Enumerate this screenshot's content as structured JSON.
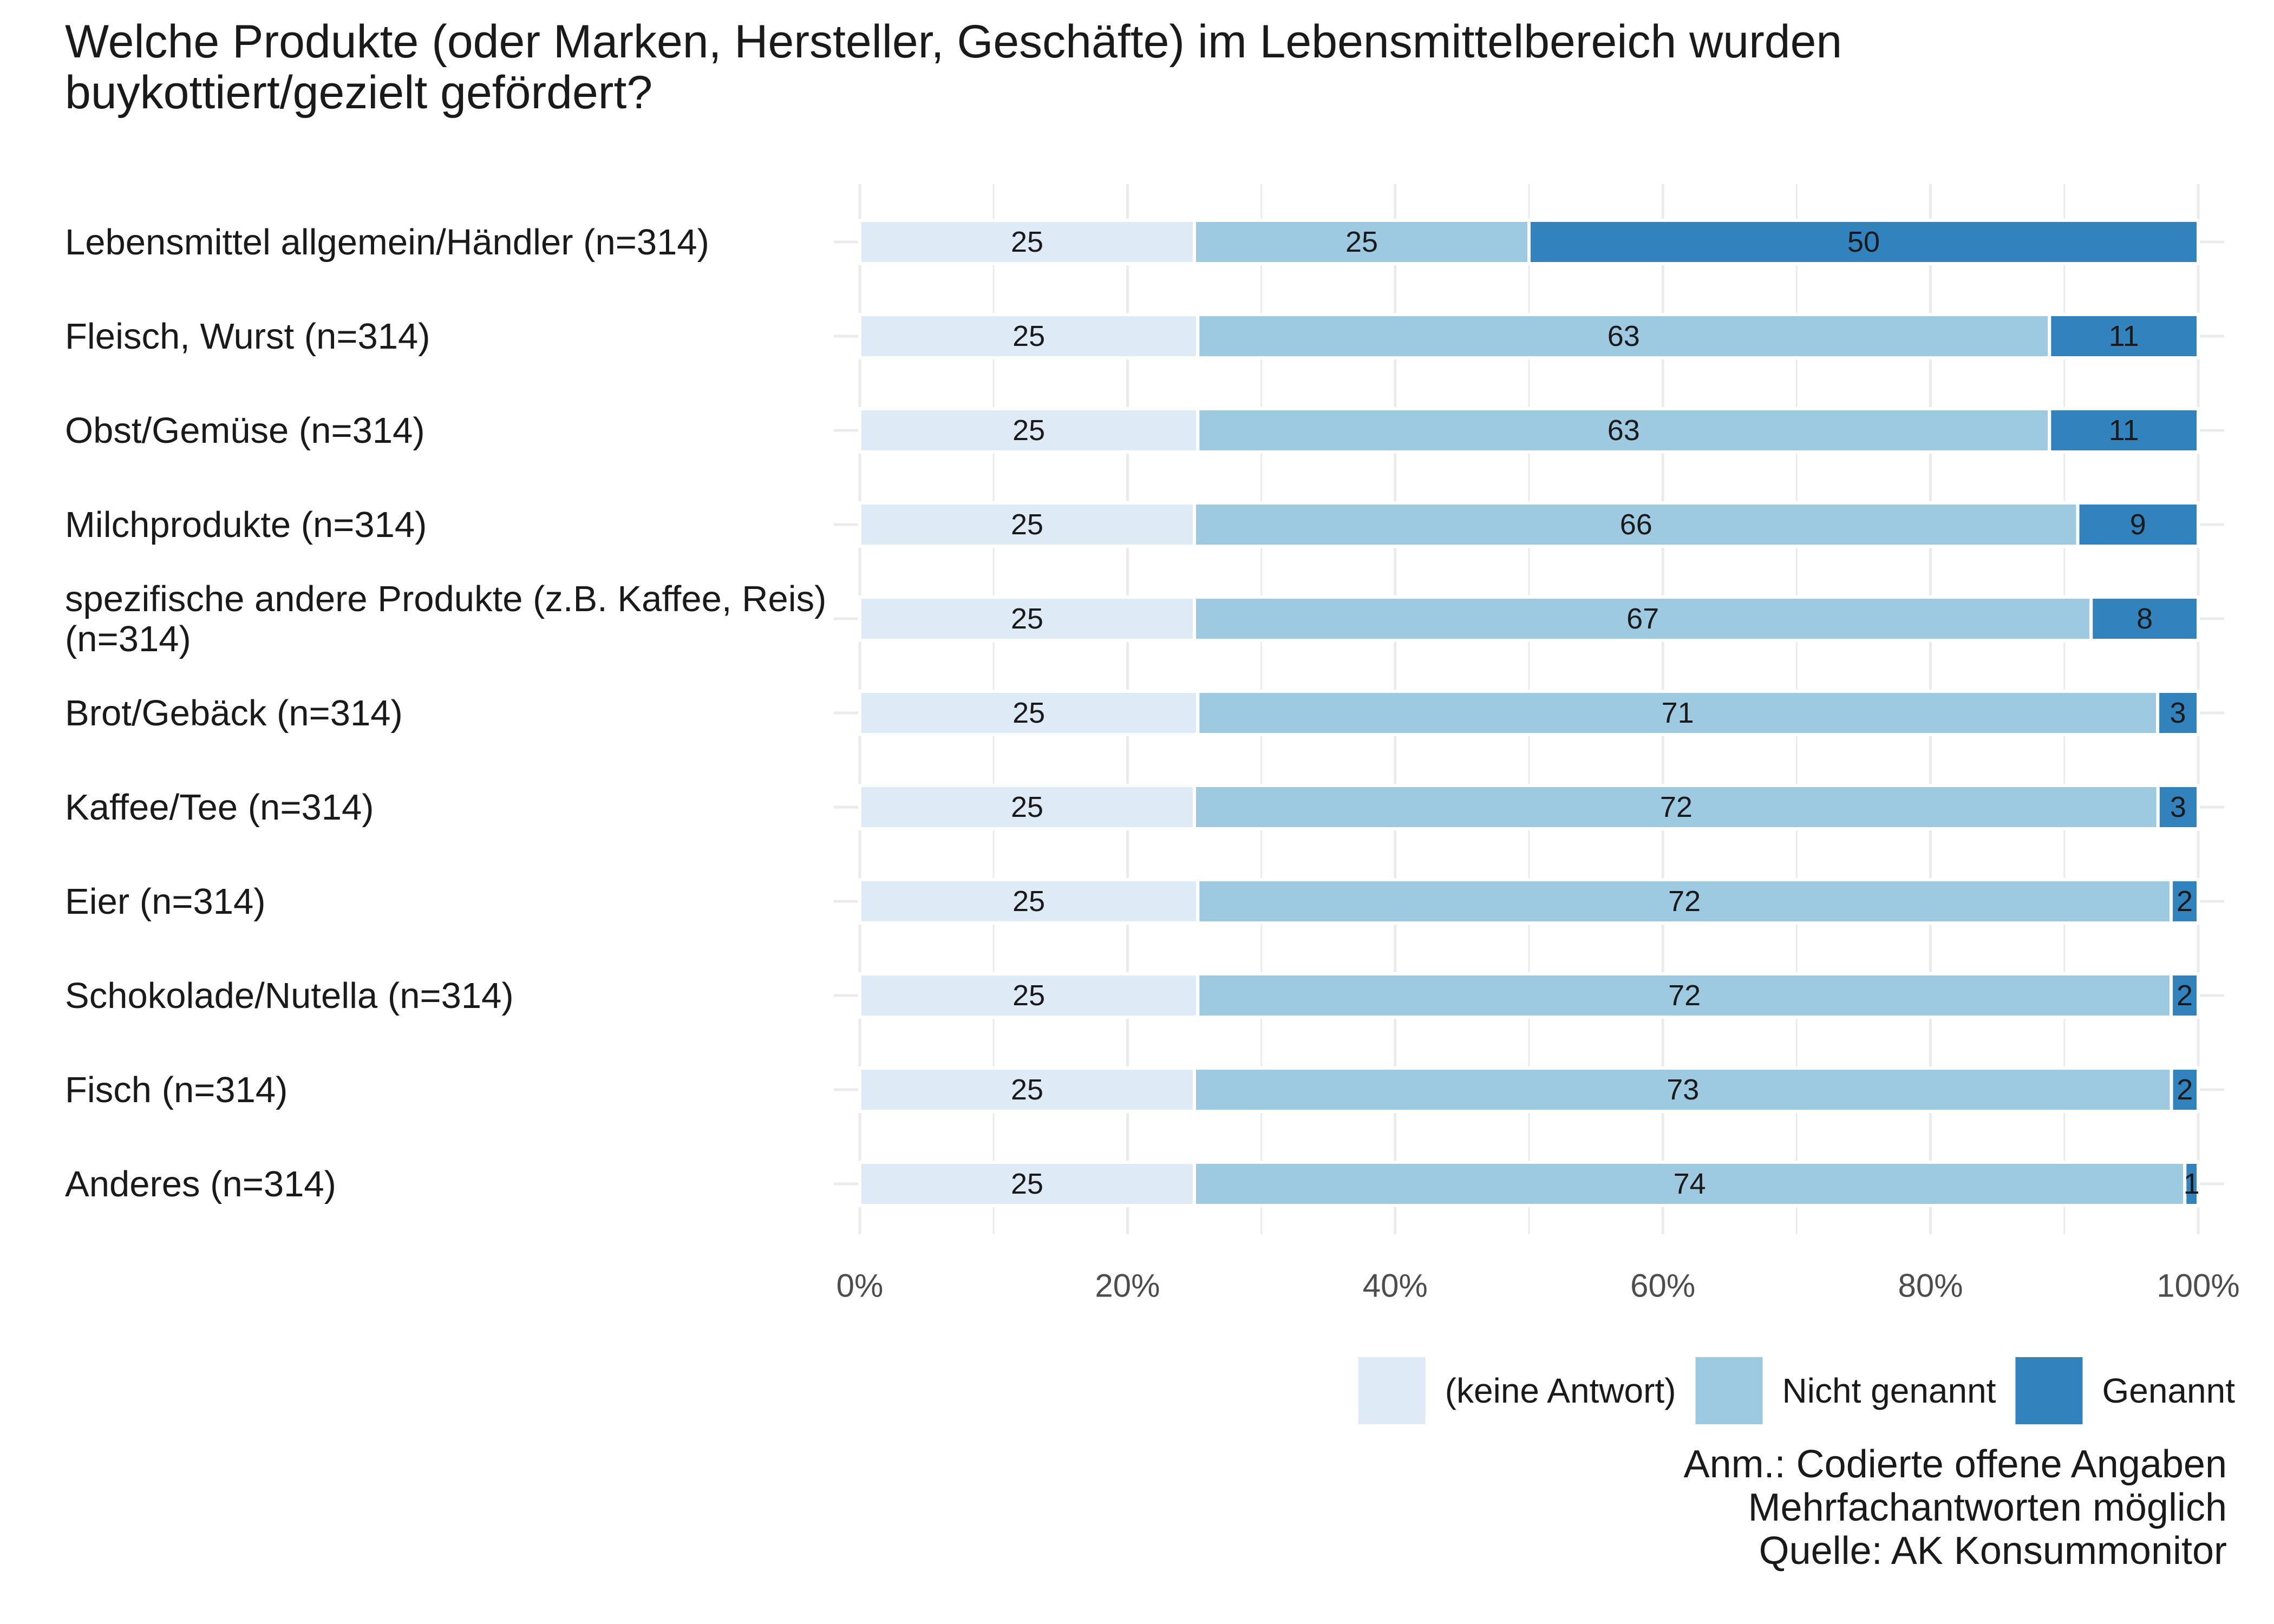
{
  "title_lines": [
    "Welche Produkte (oder Marken, Hersteller, Geschäfte) im Lebensmittelbereich wurden",
    "buykottiert/gezielt gefördert?"
  ],
  "note_lines": [
    "Anm.: Codierte offene Angaben",
    "Mehrfachantworten möglich",
    "Quelle: AK Konsummonitor"
  ],
  "colors": {
    "keine_antwort": "#DEEBF7",
    "nicht_genannt": "#9ECAE1",
    "genannt": "#3182BD",
    "grid": "#EBEBEB",
    "text": "#1A1A1A",
    "axis_text": "#4D4D4D"
  },
  "chart_data": {
    "type": "bar",
    "orientation": "horizontal",
    "stacked": true,
    "normalized": true,
    "xlim": [
      0,
      100
    ],
    "x_ticks": [
      0,
      20,
      40,
      60,
      80,
      100
    ],
    "x_tick_labels": [
      "0%",
      "20%",
      "40%",
      "60%",
      "80%",
      "100%"
    ],
    "grid": true,
    "legend_position": "bottom-right",
    "categories": [
      [
        "Lebensmittel allgemein/Händler (n=314)"
      ],
      [
        "Fleisch, Wurst (n=314)"
      ],
      [
        "Obst/Gemüse (n=314)"
      ],
      [
        "Milchprodukte (n=314)"
      ],
      [
        "spezifische andere Produkte (z.B. Kaffee, Reis)",
        "(n=314)"
      ],
      [
        "Brot/Gebäck (n=314)"
      ],
      [
        "Kaffee/Tee (n=314)"
      ],
      [
        "Eier (n=314)"
      ],
      [
        "Schokolade/Nutella (n=314)"
      ],
      [
        "Fisch (n=314)"
      ],
      [
        "Anderes (n=314)"
      ]
    ],
    "series": [
      {
        "name": "(keine Antwort)",
        "color_key": "keine_antwort",
        "values": [
          25,
          25,
          25,
          25,
          25,
          25,
          25,
          25,
          25,
          25,
          25
        ]
      },
      {
        "name": "Nicht genannt",
        "color_key": "nicht_genannt",
        "values": [
          25,
          63,
          63,
          66,
          67,
          71,
          72,
          72,
          72,
          73,
          74
        ]
      },
      {
        "name": "Genannt",
        "color_key": "genannt",
        "values": [
          50,
          11,
          11,
          9,
          8,
          3,
          3,
          2,
          2,
          2,
          1
        ]
      }
    ]
  }
}
